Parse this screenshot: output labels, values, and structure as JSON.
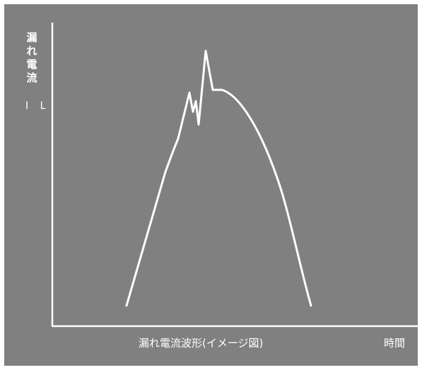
{
  "diagram": {
    "ylabel_chars": [
      "漏",
      "れ",
      "電",
      "流"
    ],
    "ysymbol": "I L",
    "caption": "漏れ電流波形(イメージ図)",
    "xlabel": "時間",
    "colors": {
      "background": "#808080",
      "foreground": "#ffffff"
    }
  }
}
